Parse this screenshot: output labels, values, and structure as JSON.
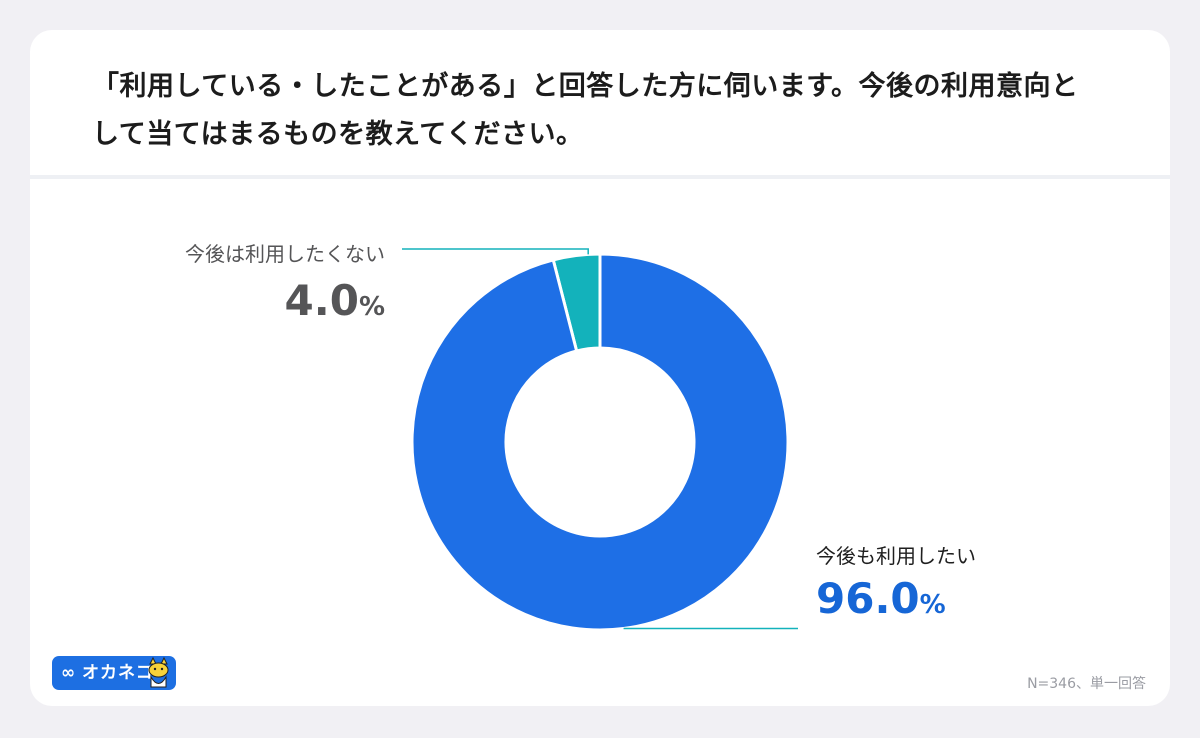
{
  "title": "「利用している・したことがある」と回答した方に伺います。今後の利用意向として当てはまるものを教えてください。",
  "chart_data": {
    "type": "pie",
    "slices": [
      {
        "label": "今後も利用したい",
        "value": 96.0,
        "display": "96.0",
        "unit": "%",
        "color": "#1e6fe6",
        "label_color": "#1666d6"
      },
      {
        "label": "今後は利用したくない",
        "value": 4.0,
        "display": "4.0",
        "unit": "%",
        "color": "#13b2bb",
        "label_color": "#555557"
      }
    ],
    "donut": true,
    "leader_line_color": "#13b2bb"
  },
  "logo": {
    "mark": "∞",
    "text": "オカネコ",
    "color": "#1d6fe2",
    "mascot_icon": "cat-mascot-icon"
  },
  "note": "N=346、単一回答"
}
